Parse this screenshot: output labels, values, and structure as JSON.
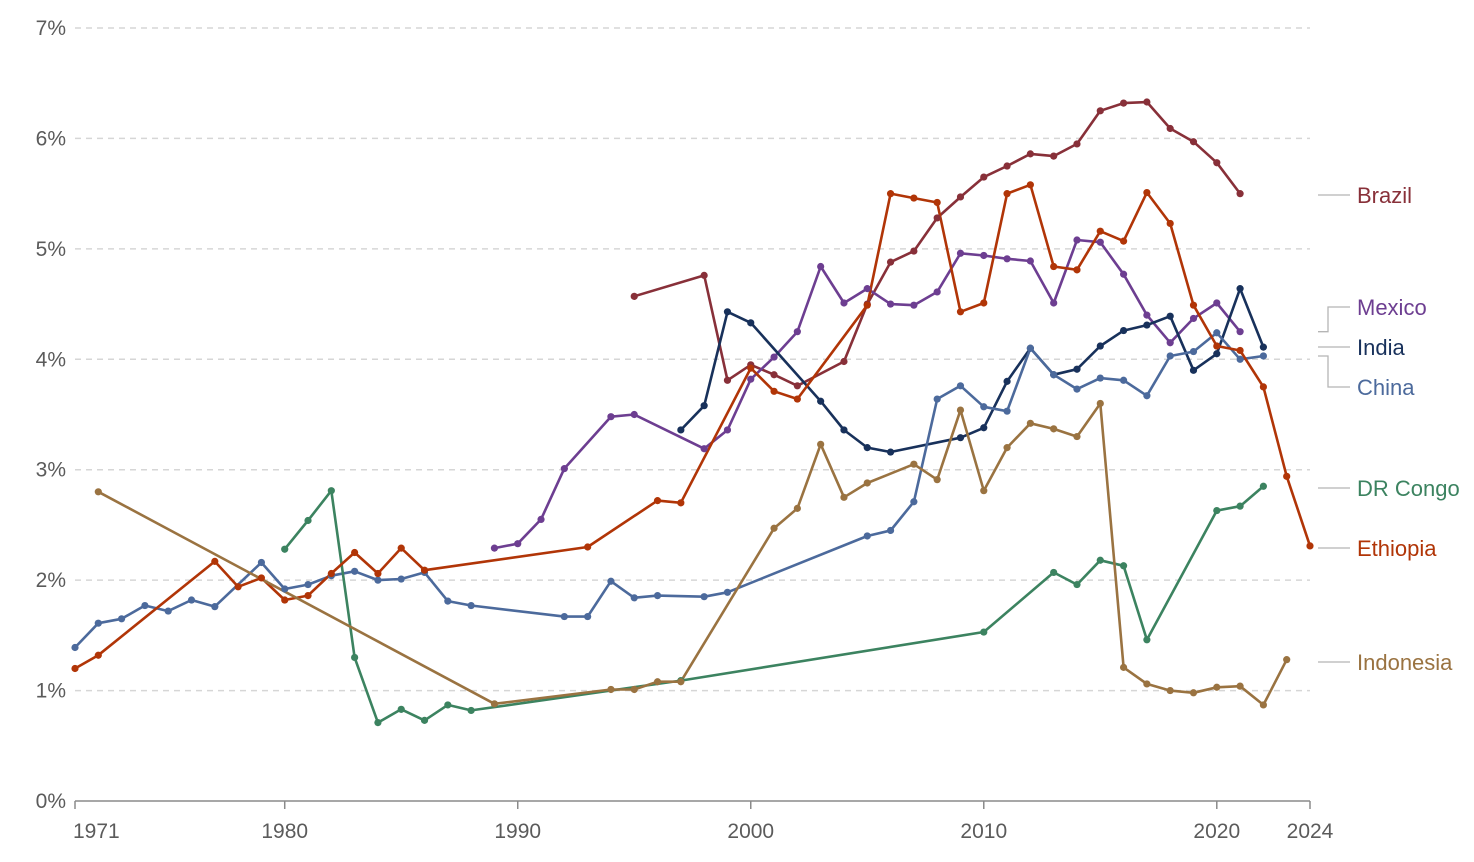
{
  "chart_data": {
    "type": "line",
    "title": "",
    "xlabel": "",
    "ylabel": "",
    "xlim": [
      1971,
      2024
    ],
    "ylim": [
      0,
      7
    ],
    "x_ticks": [
      1971,
      1980,
      1990,
      2000,
      2010,
      2020,
      2024
    ],
    "x_tick_labels": [
      "1971",
      "1980",
      "1990",
      "2000",
      "2010",
      "2020",
      "2024"
    ],
    "y_ticks": [
      0,
      1,
      2,
      3,
      4,
      5,
      6,
      7
    ],
    "y_tick_labels": [
      "0%",
      "1%",
      "2%",
      "3%",
      "4%",
      "5%",
      "6%",
      "7%"
    ],
    "grid": "horizontal dashed",
    "legend": "right, labels at line ends",
    "series": [
      {
        "name": "Brazil",
        "color": "#883039",
        "points": [
          [
            1995,
            4.57
          ],
          [
            1998,
            4.76
          ],
          [
            1999,
            3.81
          ],
          [
            2000,
            3.95
          ],
          [
            2001,
            3.86
          ],
          [
            2002,
            3.76
          ],
          [
            2004,
            3.98
          ],
          [
            2005,
            4.5
          ],
          [
            2006,
            4.88
          ],
          [
            2007,
            4.98
          ],
          [
            2008,
            5.28
          ],
          [
            2009,
            5.47
          ],
          [
            2010,
            5.65
          ],
          [
            2011,
            5.75
          ],
          [
            2012,
            5.86
          ],
          [
            2013,
            5.84
          ],
          [
            2014,
            5.95
          ],
          [
            2015,
            6.25
          ],
          [
            2016,
            6.32
          ],
          [
            2017,
            6.33
          ],
          [
            2018,
            6.09
          ],
          [
            2019,
            5.97
          ],
          [
            2020,
            5.78
          ],
          [
            2021,
            5.5
          ]
        ]
      },
      {
        "name": "Mexico",
        "color": "#6d3e91",
        "points": [
          [
            1989,
            2.29
          ],
          [
            1990,
            2.33
          ],
          [
            1991,
            2.55
          ],
          [
            1992,
            3.01
          ],
          [
            1994,
            3.48
          ],
          [
            1995,
            3.5
          ],
          [
            1998,
            3.19
          ],
          [
            1999,
            3.36
          ],
          [
            2000,
            3.82
          ],
          [
            2001,
            4.02
          ],
          [
            2002,
            4.25
          ],
          [
            2003,
            4.84
          ],
          [
            2004,
            4.51
          ],
          [
            2005,
            4.64
          ],
          [
            2006,
            4.5
          ],
          [
            2007,
            4.49
          ],
          [
            2008,
            4.61
          ],
          [
            2009,
            4.96
          ],
          [
            2010,
            4.94
          ],
          [
            2011,
            4.91
          ],
          [
            2012,
            4.89
          ],
          [
            2013,
            4.51
          ],
          [
            2014,
            5.08
          ],
          [
            2015,
            5.06
          ],
          [
            2016,
            4.77
          ],
          [
            2017,
            4.4
          ],
          [
            2018,
            4.15
          ],
          [
            2019,
            4.37
          ],
          [
            2020,
            4.51
          ],
          [
            2021,
            4.25
          ]
        ]
      },
      {
        "name": "India",
        "color": "#18315b",
        "points": [
          [
            1997,
            3.36
          ],
          [
            1998,
            3.58
          ],
          [
            1999,
            4.43
          ],
          [
            2000,
            4.33
          ],
          [
            2003,
            3.62
          ],
          [
            2004,
            3.36
          ],
          [
            2005,
            3.2
          ],
          [
            2006,
            3.16
          ],
          [
            2009,
            3.29
          ],
          [
            2010,
            3.38
          ],
          [
            2011,
            3.8
          ],
          [
            2012,
            4.1
          ],
          [
            2013,
            3.86
          ],
          [
            2014,
            3.91
          ],
          [
            2015,
            4.12
          ],
          [
            2016,
            4.26
          ],
          [
            2017,
            4.31
          ],
          [
            2018,
            4.39
          ],
          [
            2019,
            3.9
          ],
          [
            2020,
            4.05
          ],
          [
            2021,
            4.64
          ],
          [
            2022,
            4.11
          ]
        ]
      },
      {
        "name": "China",
        "color": "#4c6a9c",
        "points": [
          [
            1971,
            1.39
          ],
          [
            1972,
            1.61
          ],
          [
            1973,
            1.65
          ],
          [
            1974,
            1.77
          ],
          [
            1975,
            1.72
          ],
          [
            1976,
            1.82
          ],
          [
            1977,
            1.76
          ],
          [
            1979,
            2.16
          ],
          [
            1980,
            1.92
          ],
          [
            1981,
            1.96
          ],
          [
            1982,
            2.04
          ],
          [
            1983,
            2.08
          ],
          [
            1984,
            2.0
          ],
          [
            1985,
            2.01
          ],
          [
            1986,
            2.07
          ],
          [
            1987,
            1.81
          ],
          [
            1988,
            1.77
          ],
          [
            1992,
            1.67
          ],
          [
            1993,
            1.67
          ],
          [
            1994,
            1.99
          ],
          [
            1995,
            1.84
          ],
          [
            1996,
            1.86
          ],
          [
            1998,
            1.85
          ],
          [
            1999,
            1.89
          ],
          [
            2005,
            2.4
          ],
          [
            2006,
            2.45
          ],
          [
            2007,
            2.71
          ],
          [
            2008,
            3.64
          ],
          [
            2009,
            3.76
          ],
          [
            2010,
            3.57
          ],
          [
            2011,
            3.53
          ],
          [
            2012,
            4.1
          ],
          [
            2013,
            3.86
          ],
          [
            2014,
            3.73
          ],
          [
            2015,
            3.83
          ],
          [
            2016,
            3.81
          ],
          [
            2017,
            3.67
          ],
          [
            2018,
            4.03
          ],
          [
            2019,
            4.07
          ],
          [
            2020,
            4.24
          ],
          [
            2021,
            4.0
          ],
          [
            2022,
            4.03
          ]
        ]
      },
      {
        "name": "DR Congo",
        "color": "#3c8360",
        "points": [
          [
            1980,
            2.28
          ],
          [
            1981,
            2.54
          ],
          [
            1982,
            2.81
          ],
          [
            1983,
            1.3
          ],
          [
            1984,
            0.71
          ],
          [
            1985,
            0.83
          ],
          [
            1986,
            0.73
          ],
          [
            1987,
            0.87
          ],
          [
            1988,
            0.82
          ],
          [
            1997,
            1.09
          ],
          [
            2010,
            1.53
          ],
          [
            2013,
            2.07
          ],
          [
            2014,
            1.96
          ],
          [
            2015,
            2.18
          ],
          [
            2016,
            2.13
          ],
          [
            2017,
            1.46
          ],
          [
            2020,
            2.63
          ],
          [
            2021,
            2.67
          ],
          [
            2022,
            2.85
          ]
        ]
      },
      {
        "name": "Ethiopia",
        "color": "#b13507",
        "points": [
          [
            1971,
            1.2
          ],
          [
            1972,
            1.32
          ],
          [
            1977,
            2.17
          ],
          [
            1978,
            1.94
          ],
          [
            1979,
            2.02
          ],
          [
            1980,
            1.82
          ],
          [
            1981,
            1.86
          ],
          [
            1982,
            2.06
          ],
          [
            1983,
            2.25
          ],
          [
            1984,
            2.06
          ],
          [
            1985,
            2.29
          ],
          [
            1986,
            2.09
          ],
          [
            1993,
            2.3
          ],
          [
            1996,
            2.72
          ],
          [
            1997,
            2.7
          ],
          [
            2000,
            3.92
          ],
          [
            2001,
            3.71
          ],
          [
            2002,
            3.64
          ],
          [
            2005,
            4.49
          ],
          [
            2006,
            5.5
          ],
          [
            2007,
            5.46
          ],
          [
            2008,
            5.42
          ],
          [
            2009,
            4.43
          ],
          [
            2010,
            4.51
          ],
          [
            2011,
            5.5
          ],
          [
            2012,
            5.58
          ],
          [
            2013,
            4.84
          ],
          [
            2014,
            4.81
          ],
          [
            2015,
            5.16
          ],
          [
            2016,
            5.07
          ],
          [
            2017,
            5.51
          ],
          [
            2018,
            5.23
          ],
          [
            2019,
            4.49
          ],
          [
            2020,
            4.12
          ],
          [
            2021,
            4.08
          ],
          [
            2022,
            3.75
          ],
          [
            2023,
            2.94
          ],
          [
            2024,
            2.31
          ]
        ]
      },
      {
        "name": "Indonesia",
        "color": "#9a7341",
        "points": [
          [
            1972,
            2.8
          ],
          [
            1989,
            0.88
          ],
          [
            1994,
            1.01
          ],
          [
            1995,
            1.01
          ],
          [
            1996,
            1.08
          ],
          [
            1997,
            1.08
          ],
          [
            2001,
            2.47
          ],
          [
            2002,
            2.65
          ],
          [
            2003,
            3.23
          ],
          [
            2004,
            2.75
          ],
          [
            2005,
            2.88
          ],
          [
            2007,
            3.05
          ],
          [
            2008,
            2.91
          ],
          [
            2009,
            3.54
          ],
          [
            2010,
            2.81
          ],
          [
            2011,
            3.2
          ],
          [
            2012,
            3.42
          ],
          [
            2013,
            3.37
          ],
          [
            2014,
            3.3
          ],
          [
            2015,
            3.6
          ],
          [
            2016,
            1.21
          ],
          [
            2017,
            1.06
          ],
          [
            2018,
            1.0
          ],
          [
            2019,
            0.98
          ],
          [
            2020,
            1.03
          ],
          [
            2021,
            1.04
          ],
          [
            2022,
            0.87
          ],
          [
            2023,
            1.28
          ]
        ]
      }
    ]
  }
}
